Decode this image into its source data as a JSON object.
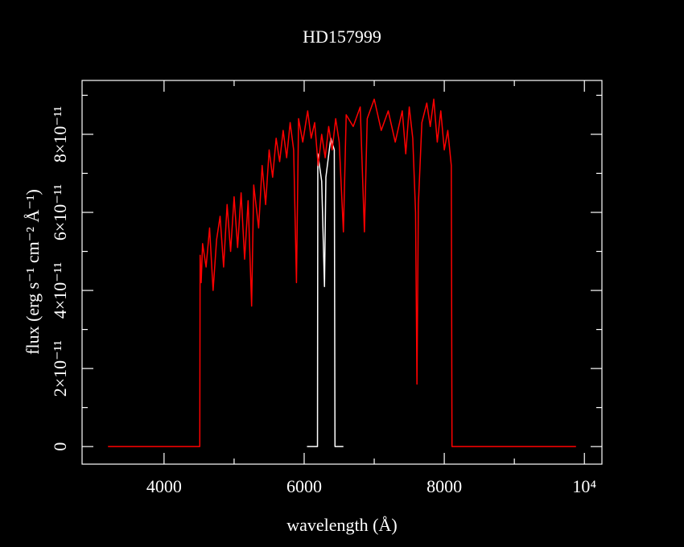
{
  "chart_data": {
    "type": "line",
    "title": "HD157999",
    "xlabel": "wavelength (Å)",
    "ylabel": "flux (erg s⁻¹ cm⁻² Å⁻¹)",
    "xlim": [
      2830,
      10250
    ],
    "ylim": [
      -4.5e-12,
      9.38e-11
    ],
    "xticks": [
      4000,
      6000,
      8000,
      {
        "value": 10000,
        "label": "10⁴"
      }
    ],
    "yticks": [
      0,
      {
        "value": 2e-11,
        "label": "2×10⁻¹¹"
      },
      {
        "value": 4e-11,
        "label": "4×10⁻¹¹"
      },
      {
        "value": 6e-11,
        "label": "6×10⁻¹¹"
      },
      {
        "value": 8e-11,
        "label": "8×10⁻¹¹"
      }
    ],
    "series": [
      {
        "color": "#ffffff",
        "x": [
          6040,
          6190,
          6195,
          6250,
          6290,
          6310,
          6380,
          6430,
          6440,
          6560
        ],
        "values": [
          0,
          0,
          7.5e-11,
          6.8e-11,
          4.1e-11,
          6.9e-11,
          7.9e-11,
          7.6e-11,
          0,
          0
        ]
      },
      {
        "color": "#ff0000",
        "x": [
          3200,
          4510,
          4515,
          4530,
          4550,
          4600,
          4650,
          4700,
          4750,
          4800,
          4850,
          4900,
          4950,
          5000,
          5050,
          5100,
          5150,
          5200,
          5250,
          5280,
          5350,
          5400,
          5450,
          5500,
          5550,
          5600,
          5650,
          5700,
          5750,
          5800,
          5850,
          5890,
          5920,
          5980,
          6050,
          6100,
          6150,
          6200,
          6250,
          6300,
          6350,
          6400,
          6450,
          6500,
          6560,
          6600,
          6700,
          6800,
          6860,
          6900,
          7000,
          7100,
          7200,
          7300,
          7400,
          7450,
          7500,
          7550,
          7590,
          7610,
          7630,
          7680,
          7750,
          7800,
          7850,
          7900,
          7950,
          8000,
          8050,
          8100,
          8110,
          9880
        ],
        "values": [
          0,
          0,
          4.9e-11,
          4.2e-11,
          5.2e-11,
          4.6e-11,
          5.6e-11,
          4e-11,
          5.3e-11,
          5.9e-11,
          4.6e-11,
          6.2e-11,
          5e-11,
          6.4e-11,
          5.1e-11,
          6.5e-11,
          4.8e-11,
          6.3e-11,
          3.6e-11,
          6.7e-11,
          5.6e-11,
          7.2e-11,
          6.2e-11,
          7.6e-11,
          6.9e-11,
          7.9e-11,
          7.3e-11,
          8.1e-11,
          7.4e-11,
          8.3e-11,
          7.6e-11,
          4.2e-11,
          8.4e-11,
          7.8e-11,
          8.6e-11,
          7.9e-11,
          8.3e-11,
          7.2e-11,
          8e-11,
          7.4e-11,
          8.2e-11,
          7.6e-11,
          8.4e-11,
          7.8e-11,
          5.5e-11,
          8.5e-11,
          8.2e-11,
          8.7e-11,
          5.5e-11,
          8.4e-11,
          8.9e-11,
          8.1e-11,
          8.6e-11,
          7.8e-11,
          8.6e-11,
          7.5e-11,
          8.7e-11,
          7.9e-11,
          6e-11,
          1.6e-11,
          6.2e-11,
          8.3e-11,
          8.8e-11,
          8.2e-11,
          8.9e-11,
          7.8e-11,
          8.6e-11,
          7.6e-11,
          8.1e-11,
          7.2e-11,
          0,
          0
        ]
      }
    ]
  }
}
